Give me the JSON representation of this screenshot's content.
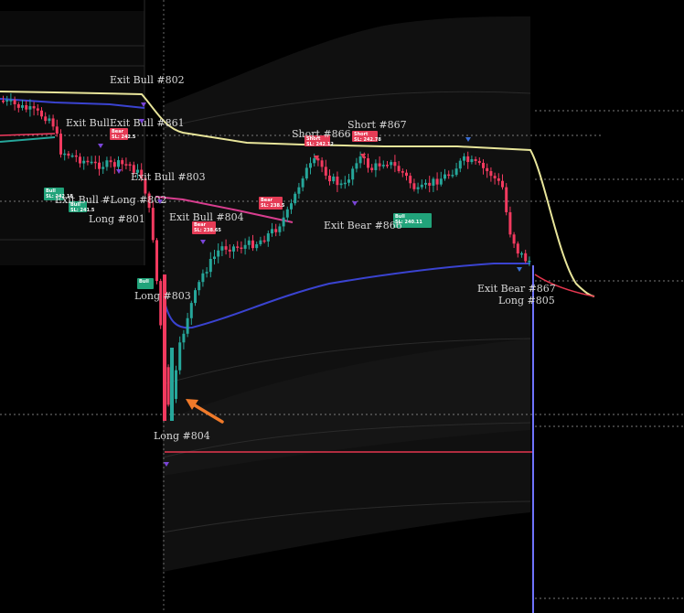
{
  "colors": {
    "background": "#000000",
    "bull_candle": "#26a69a",
    "bear_candle": "#f23a5f",
    "upper_line": "#e8e59a",
    "vwap_line": "#3a43d0",
    "red_line": "#e5364f",
    "arrow": "#f07a2a",
    "bull_tag": "#21a37a",
    "bear_tag": "#e53c56",
    "band_fill": "#101010"
  },
  "chart_data": {
    "type": "candlestick",
    "title": "",
    "xlabel": "",
    "ylabel": "",
    "grid": false,
    "x_ticks": [],
    "y_ticks": [],
    "price_tags": [
      {
        "side": "bull",
        "text": "Bull SL: 242.18"
      },
      {
        "side": "bull",
        "text": "Bull SL: 241.5"
      },
      {
        "side": "bear",
        "text": "Bear SL: 242.5"
      },
      {
        "side": "bear",
        "text": "Bear SL: 238.65"
      },
      {
        "side": "bear",
        "text": "Bear SL: 238.5"
      },
      {
        "side": "bear",
        "text": "Short SL: 242.12"
      },
      {
        "side": "bear",
        "text": "Short SL: 242.78"
      },
      {
        "side": "bull",
        "text": "Bull SL: 240.11"
      },
      {
        "side": "bull",
        "text": "Bull"
      }
    ],
    "annotations": [
      "Exit Bull #802",
      "Exit Bull",
      "Exit Bull #861",
      "Exit Bull #803",
      "Exit Bull #Long #802",
      "Long #801",
      "Exit Bull #804",
      "Short #866",
      "Short #867",
      "Exit Bear #866",
      "Long #803",
      "Long #804",
      "Exit Bear #867",
      "Long #805"
    ]
  }
}
